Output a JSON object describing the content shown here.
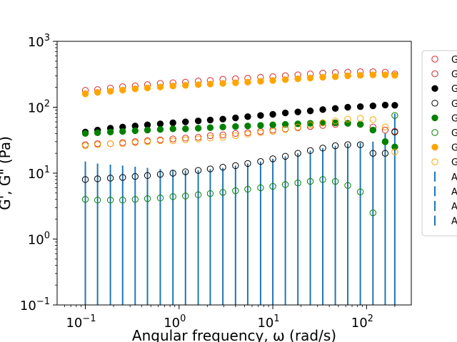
{
  "chart_data": {
    "type": "scatter",
    "title": "",
    "xlabel": "Angular frequency, ω (rad/s)",
    "ylabel": "G', G\" (Pa)",
    "xscale": "log",
    "yscale": "log",
    "xlim": [
      0.05,
      300
    ],
    "ylim": [
      0.1,
      1000
    ],
    "x_ticks": [
      {
        "value": 0.1,
        "base": "10",
        "exp": "−1"
      },
      {
        "value": 1,
        "base": "10",
        "exp": "0"
      },
      {
        "value": 10,
        "base": "10",
        "exp": "1"
      },
      {
        "value": 100,
        "base": "10",
        "exp": "2"
      }
    ],
    "y_ticks": [
      {
        "value": 0.1,
        "base": "10",
        "exp": "−1"
      },
      {
        "value": 1,
        "base": "10",
        "exp": "0"
      },
      {
        "value": 10,
        "base": "10",
        "exp": "1"
      },
      {
        "value": 100,
        "base": "10",
        "exp": "2"
      },
      {
        "value": 1000,
        "base": "10",
        "exp": "3"
      }
    ],
    "grid": false,
    "legend_position": "right-outside",
    "x": [
      0.1,
      0.135,
      0.185,
      0.25,
      0.34,
      0.46,
      0.63,
      0.86,
      1.17,
      1.6,
      2.15,
      2.93,
      4.0,
      5.4,
      7.4,
      10.0,
      13.6,
      18.5,
      25.1,
      34.1,
      46.4,
      63.0,
      85.8,
      117,
      158,
      200
    ],
    "series": [
      {
        "color": "#d62728",
        "marker": "open",
        "values": [
          180,
          185,
          195,
          205,
          210,
          220,
          230,
          235,
          240,
          250,
          255,
          265,
          270,
          275,
          285,
          290,
          300,
          310,
          320,
          330,
          335,
          340,
          345,
          345,
          340,
          320
        ]
      },
      {
        "color": "#d62728",
        "marker": "open",
        "values": [
          27,
          28,
          28,
          29,
          30,
          31,
          32,
          33,
          34,
          35,
          37,
          38,
          40,
          41,
          43,
          45,
          47,
          49,
          51,
          53,
          55,
          57,
          55,
          50,
          45,
          43
        ]
      },
      {
        "color": "#000000",
        "marker": "filled",
        "values": [
          42,
          45,
          48,
          50,
          52,
          54,
          56,
          58,
          60,
          62,
          64,
          66,
          69,
          72,
          75,
          78,
          82,
          85,
          88,
          92,
          96,
          100,
          102,
          105,
          108,
          107
        ]
      },
      {
        "color": "#000000",
        "marker": "open",
        "values": [
          8,
          8.2,
          8.4,
          8.6,
          8.9,
          9.2,
          9.6,
          10,
          10.5,
          11,
          11.6,
          12.3,
          13,
          14,
          15,
          16.5,
          18,
          20,
          22,
          24,
          26,
          27,
          27,
          20,
          20,
          42
        ]
      },
      {
        "color": "#008000",
        "marker": "filled",
        "values": [
          40,
          41,
          42,
          43,
          44,
          45,
          46,
          47,
          47,
          48,
          49,
          50,
          51,
          52,
          53,
          54,
          55,
          56,
          57,
          58,
          58,
          57,
          55,
          45,
          30,
          25
        ]
      },
      {
        "color": "#008000",
        "marker": "open",
        "values": [
          4,
          3.9,
          3.9,
          3.9,
          4.0,
          4.1,
          4.2,
          4.4,
          4.5,
          4.7,
          4.9,
          5.1,
          5.4,
          5.7,
          6.0,
          6.3,
          6.7,
          7.1,
          7.5,
          8.0,
          7.5,
          6.5,
          5.2,
          2.5,
          30,
          75
        ]
      },
      {
        "color": "#ffa500",
        "marker": "filled",
        "values": [
          160,
          168,
          175,
          182,
          190,
          196,
          203,
          210,
          215,
          220,
          225,
          230,
          235,
          240,
          248,
          255,
          262,
          270,
          278,
          285,
          290,
          300,
          305,
          310,
          310,
          305
        ]
      },
      {
        "color": "#ffa500",
        "marker": "open",
        "values": [
          26,
          27,
          28,
          28,
          29,
          30,
          31,
          31,
          32,
          33,
          34,
          35,
          37,
          39,
          41,
          43,
          46,
          50,
          54,
          58,
          62,
          66,
          68,
          65,
          50,
          21
        ]
      }
    ],
    "error_bars": {
      "color": "#1f77b4",
      "points": [
        {
          "x": 0.1,
          "y": 15
        },
        {
          "x": 0.135,
          "y": 14
        },
        {
          "x": 0.185,
          "y": 13.5
        },
        {
          "x": 0.25,
          "y": 13
        },
        {
          "x": 0.34,
          "y": 12.5
        },
        {
          "x": 0.46,
          "y": 12
        },
        {
          "x": 0.63,
          "y": 11.5
        },
        {
          "x": 0.86,
          "y": 11
        },
        {
          "x": 1.17,
          "y": 11
        },
        {
          "x": 1.6,
          "y": 11
        },
        {
          "x": 2.15,
          "y": 11.5
        },
        {
          "x": 2.93,
          "y": 12
        },
        {
          "x": 4.0,
          "y": 13
        },
        {
          "x": 5.4,
          "y": 14
        },
        {
          "x": 7.4,
          "y": 15
        },
        {
          "x": 10.0,
          "y": 16.5
        },
        {
          "x": 13.6,
          "y": 18
        },
        {
          "x": 18.5,
          "y": 20
        },
        {
          "x": 25.1,
          "y": 22
        },
        {
          "x": 34.1,
          "y": 24
        },
        {
          "x": 46.4,
          "y": 26
        },
        {
          "x": 63.0,
          "y": 28
        },
        {
          "x": 85.8,
          "y": 29
        },
        {
          "x": 117,
          "y": 30
        },
        {
          "x": 158,
          "y": 40
        },
        {
          "x": 200,
          "y": 80
        }
      ]
    },
    "legend": {
      "entries": [
        {
          "label": "G",
          "color": "#d62728",
          "marker": "open"
        },
        {
          "label": "G",
          "color": "#d62728",
          "marker": "open"
        },
        {
          "label": "G",
          "color": "#000000",
          "marker": "filled"
        },
        {
          "label": "G",
          "color": "#000000",
          "marker": "open"
        },
        {
          "label": "G",
          "color": "#008000",
          "marker": "filled"
        },
        {
          "label": "G",
          "color": "#008000",
          "marker": "open"
        },
        {
          "label": "G",
          "color": "#ffa500",
          "marker": "filled"
        },
        {
          "label": "G",
          "color": "#ffa500",
          "marker": "open"
        },
        {
          "label": "A",
          "color": "#1f77b4",
          "marker": "errorbar"
        },
        {
          "label": "A",
          "color": "#1f77b4",
          "marker": "errorbar"
        },
        {
          "label": "A",
          "color": "#1f77b4",
          "marker": "errorbar"
        },
        {
          "label": "A",
          "color": "#1f77b4",
          "marker": "errorbar"
        }
      ]
    }
  }
}
